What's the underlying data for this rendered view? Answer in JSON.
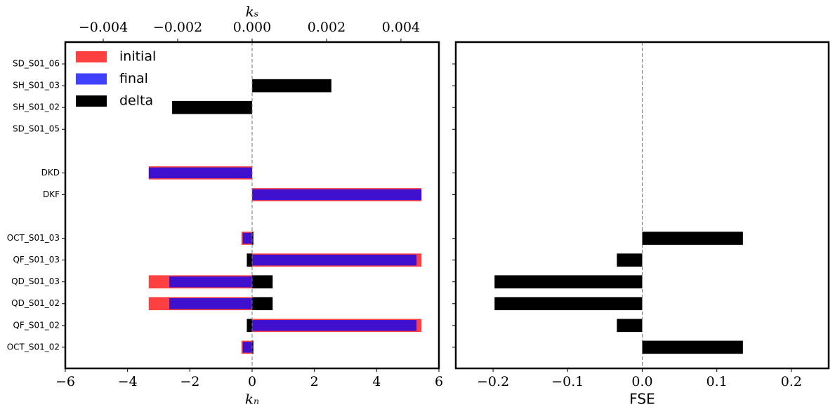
{
  "chart_data": [
    {
      "type": "barh",
      "categories": [
        "OCT_S01_02",
        "QF_S01_02",
        "QD_S01_02",
        "QD_S01_03",
        "QF_S01_03",
        "OCT_S01_03",
        null,
        "DKF",
        "DKD",
        null,
        "SD_S01_05",
        "SH_S01_02",
        "SH_S01_03",
        "SD_S01_06"
      ],
      "series": [
        {
          "name": "initial",
          "color": "#ff0000",
          "opacity": 0.75,
          "values": [
            -0.34,
            5.44,
            -3.32,
            -3.32,
            5.44,
            -0.34,
            null,
            5.44,
            -3.32,
            null,
            0,
            0,
            0,
            0
          ]
        },
        {
          "name": "final",
          "color": "#0000ff",
          "opacity": 0.75,
          "values": [
            -0.3,
            5.28,
            -2.66,
            -2.66,
            5.28,
            -0.3,
            null,
            5.44,
            -3.32,
            null,
            0,
            0,
            0,
            0
          ]
        },
        {
          "name": "delta",
          "color": "#000000",
          "opacity": 1,
          "values": [
            0.04,
            -0.17,
            0.66,
            0.66,
            -0.17,
            0.04,
            null,
            0,
            0,
            null,
            0,
            0,
            0,
            0
          ]
        },
        {
          "color": "#000000",
          "opacity": 1,
          "axis": "x2",
          "values": [
            null,
            null,
            null,
            null,
            null,
            null,
            null,
            null,
            null,
            null,
            0,
            -0.00215,
            0.00213,
            0
          ]
        }
      ],
      "xlabel": "kₙ",
      "x2label": "kₛ",
      "xlim": [
        -6,
        6
      ],
      "xticks": [
        {
          "value": -6,
          "label": "−6"
        },
        {
          "value": -4,
          "label": "−4"
        },
        {
          "value": -2,
          "label": "−2"
        },
        0,
        2,
        4,
        6
      ],
      "x2lim": [
        -0.00502,
        0.00502
      ],
      "x2ticks": [
        {
          "value": -0.004,
          "label": "−0.004"
        },
        {
          "value": -0.002,
          "label": "−0.002"
        },
        {
          "value": 0,
          "label": "0.000"
        },
        0.002,
        0.004
      ],
      "ylim": [
        -0.97,
        14
      ],
      "zero_line": true,
      "legend": "upper left"
    },
    {
      "type": "barh",
      "values": [
        0.135,
        -0.034,
        -0.198,
        -0.198,
        -0.034,
        0.135,
        null,
        null,
        null,
        null,
        null,
        null,
        null,
        null
      ],
      "color": "#000000",
      "xlabel": "FSE",
      "xlim": [
        -0.25,
        0.25
      ],
      "xticks": [
        {
          "value": -0.2,
          "label": "−0.2"
        },
        {
          "value": -0.1,
          "label": "−0.1"
        },
        {
          "value": 0,
          "label": "0.0"
        },
        0.1,
        0.2
      ],
      "ylim": [
        -0.97,
        14
      ],
      "zero_line": true
    }
  ]
}
